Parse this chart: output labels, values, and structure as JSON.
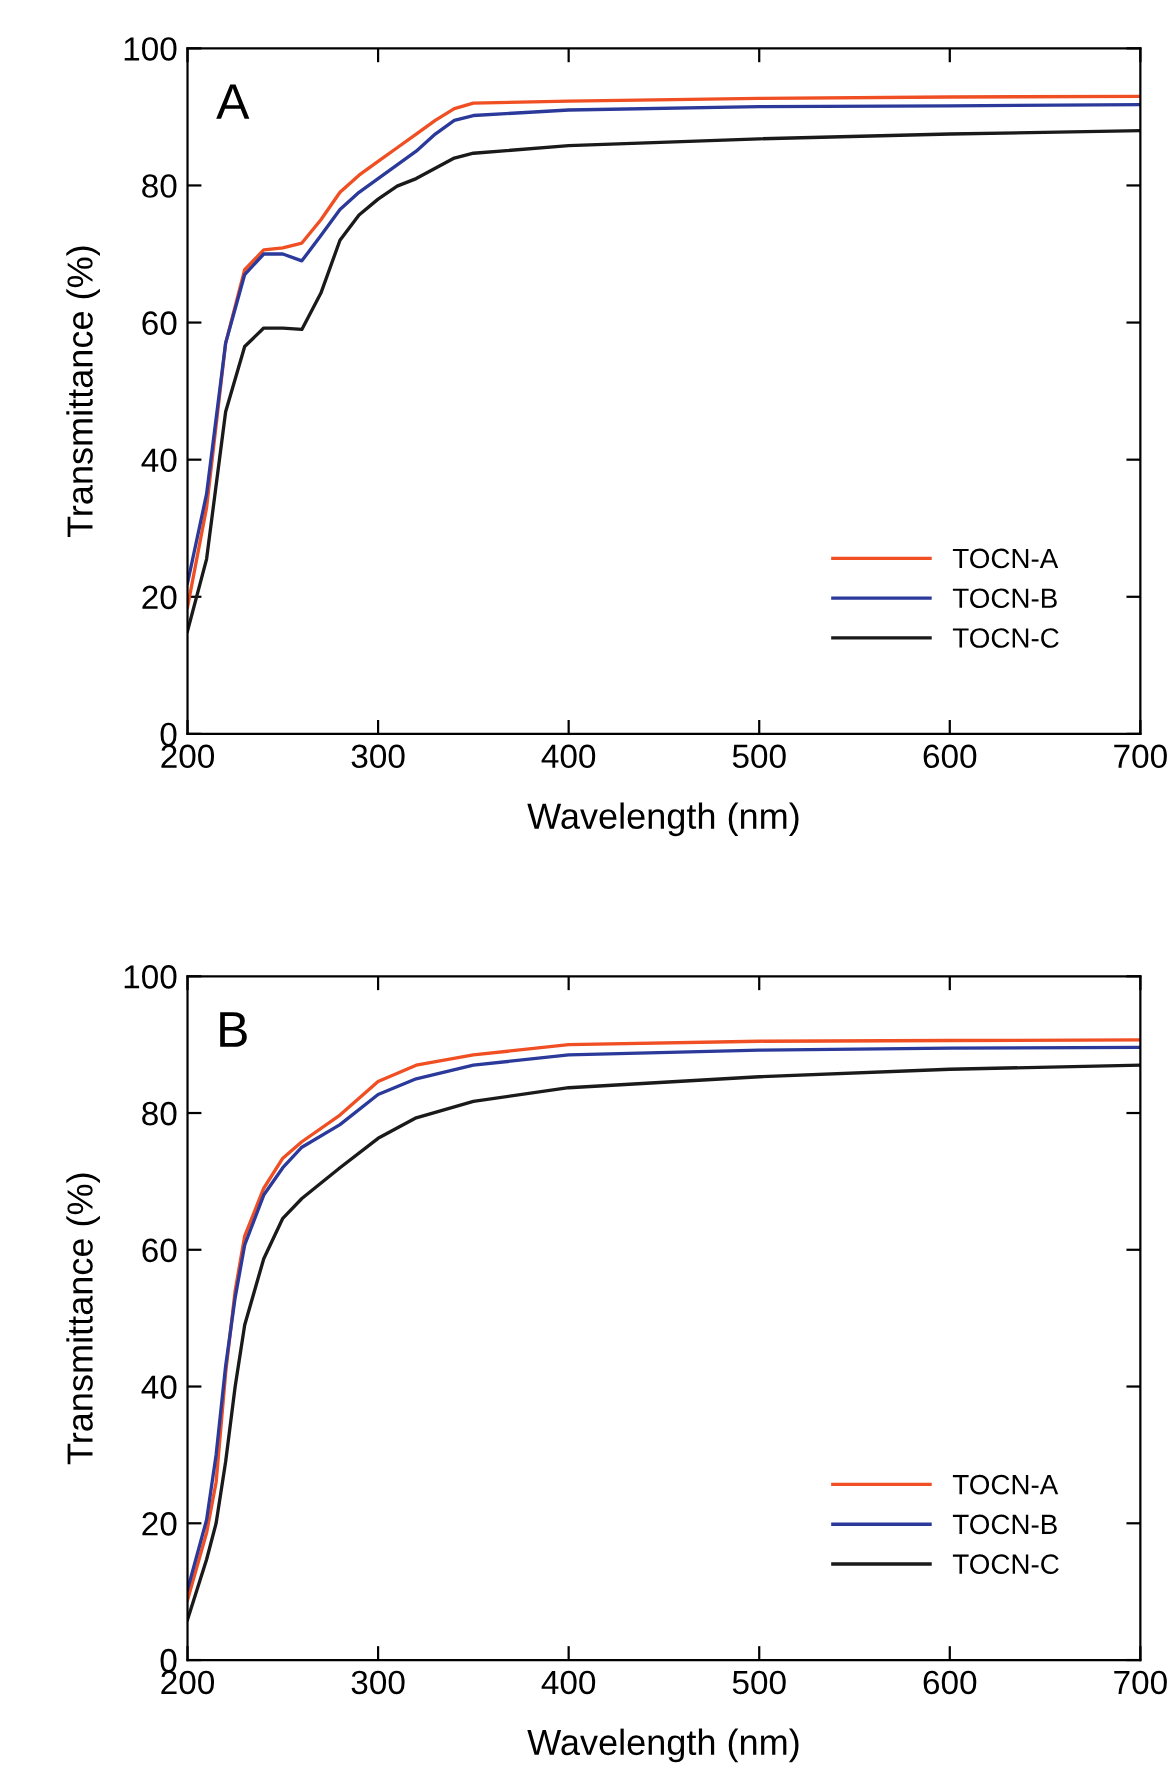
{
  "chart_data": [
    {
      "type": "line",
      "title": "A",
      "xlabel": "Wavelength (nm)",
      "ylabel": "Transmittance (%)",
      "xlim": [
        200,
        700
      ],
      "ylim": [
        0,
        100
      ],
      "xticks": [
        200,
        300,
        400,
        500,
        600,
        700
      ],
      "yticks": [
        0,
        20,
        40,
        60,
        80,
        100
      ],
      "legend": "bottom right",
      "grid": false,
      "x": [
        200,
        210,
        220,
        230,
        240,
        250,
        260,
        270,
        280,
        290,
        300,
        310,
        320,
        330,
        340,
        350,
        400,
        500,
        600,
        700
      ],
      "series": [
        {
          "name": "TOCN-A",
          "color": "#f04e23",
          "values": [
            18.5,
            33,
            57,
            67.7,
            70.6,
            70.9,
            71.6,
            75,
            79,
            81.5,
            83.5,
            85.5,
            87.5,
            89.5,
            91.2,
            92,
            92.3,
            92.7,
            92.9,
            93
          ]
        },
        {
          "name": "TOCN-B",
          "color": "#2b3a9a",
          "values": [
            22,
            35,
            57,
            67,
            70,
            70,
            69,
            72.7,
            76.5,
            79,
            81,
            83,
            85,
            87.5,
            89.5,
            90.2,
            91,
            91.5,
            91.6,
            91.8
          ]
        },
        {
          "name": "TOCN-C",
          "color": "#1a1a1a",
          "values": [
            15,
            25.5,
            47,
            56.5,
            59.2,
            59.2,
            59,
            64.3,
            72,
            75.7,
            78,
            79.9,
            81,
            82.5,
            84,
            84.7,
            85.8,
            86.8,
            87.5,
            88
          ]
        }
      ]
    },
    {
      "type": "line",
      "title": "B",
      "xlabel": "Wavelength (nm)",
      "ylabel": "Transmittance (%)",
      "xlim": [
        200,
        700
      ],
      "ylim": [
        0,
        100
      ],
      "xticks": [
        200,
        300,
        400,
        500,
        600,
        700
      ],
      "yticks": [
        0,
        20,
        40,
        60,
        80,
        100
      ],
      "legend": "bottom right",
      "grid": false,
      "x": [
        200,
        210,
        215,
        220,
        225,
        230,
        240,
        250,
        260,
        280,
        300,
        320,
        350,
        400,
        500,
        600,
        700
      ],
      "series": [
        {
          "name": "TOCN-A",
          "color": "#f04e23",
          "values": [
            8.8,
            18.6,
            26,
            42,
            54,
            62,
            69,
            73.4,
            75.8,
            79.7,
            84.6,
            87,
            88.5,
            90,
            90.5,
            90.6,
            90.7
          ]
        },
        {
          "name": "TOCN-B",
          "color": "#2b3a9a",
          "values": [
            10.3,
            20.5,
            30,
            43,
            53,
            60.7,
            68,
            72,
            75,
            78.3,
            82.7,
            85,
            87,
            88.5,
            89.2,
            89.5,
            89.6
          ]
        },
        {
          "name": "TOCN-C",
          "color": "#1a1a1a",
          "values": [
            5.9,
            14.7,
            20,
            29,
            40,
            49,
            58.7,
            64.6,
            67.5,
            72,
            76.3,
            79.3,
            81.7,
            83.7,
            85.3,
            86.4,
            87
          ]
        }
      ]
    }
  ]
}
